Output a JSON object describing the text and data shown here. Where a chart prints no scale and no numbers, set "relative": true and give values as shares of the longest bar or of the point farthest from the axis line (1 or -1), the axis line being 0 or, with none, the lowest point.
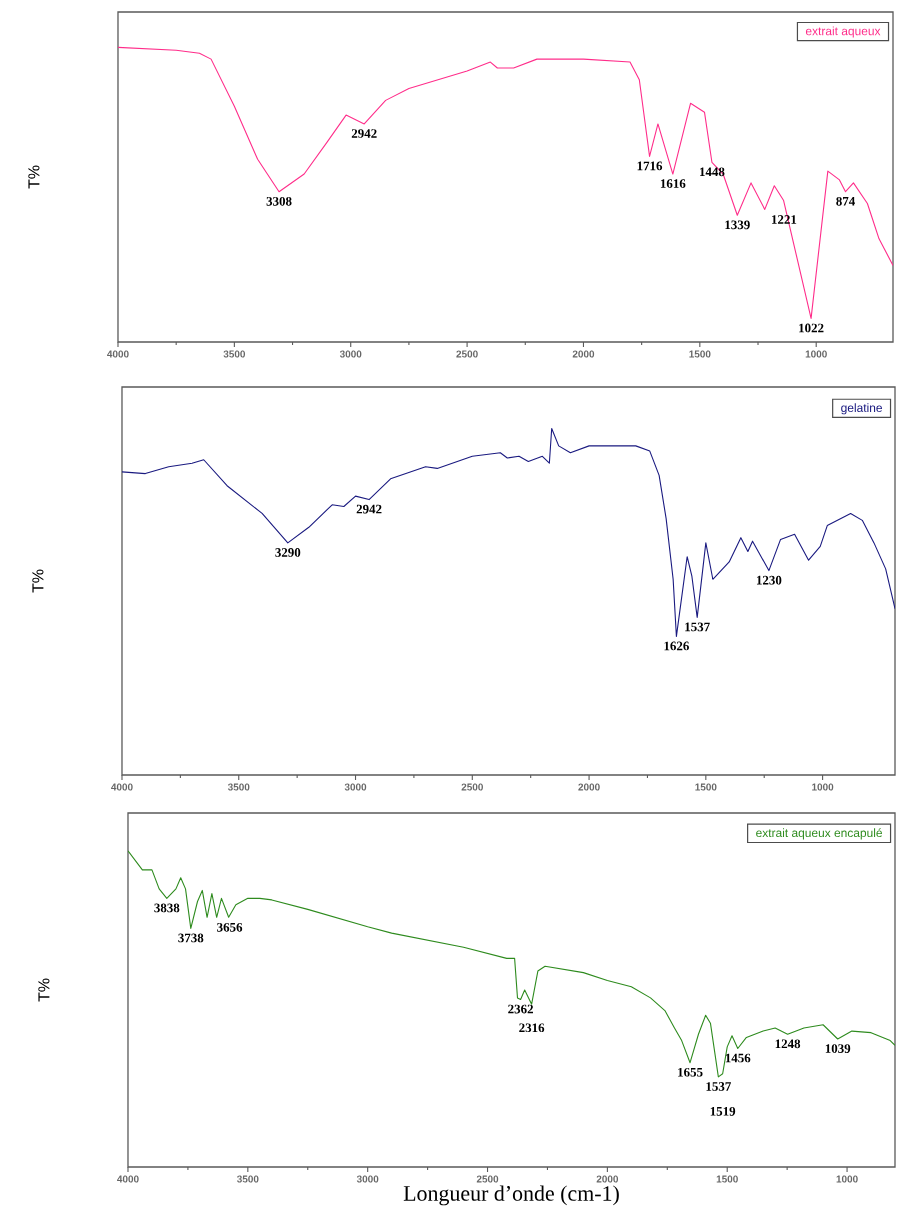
{
  "chart_data": [
    {
      "type": "line",
      "relative": true,
      "ylabel": "T%",
      "xlim": [
        4000,
        670
      ],
      "xticks": [
        4000,
        3500,
        3000,
        2500,
        2000,
        1500,
        1000
      ],
      "legend": "top right",
      "series": [
        {
          "name": "extrait aqueux",
          "color": "#ff2d8a",
          "x": [
            4000,
            3750,
            3650,
            3600,
            3500,
            3400,
            3308,
            3200,
            3100,
            3020,
            2942,
            2850,
            2750,
            2500,
            2400,
            2370,
            2300,
            2200,
            2000,
            1800,
            1760,
            1716,
            1680,
            1616,
            1540,
            1480,
            1448,
            1400,
            1339,
            1280,
            1221,
            1180,
            1140,
            1022,
            950,
            900,
            874,
            840,
            780,
            730,
            670
          ],
          "values": [
            1.0,
            0.99,
            0.98,
            0.96,
            0.8,
            0.62,
            0.51,
            0.57,
            0.68,
            0.77,
            0.74,
            0.82,
            0.86,
            0.92,
            0.95,
            0.93,
            0.93,
            0.96,
            0.96,
            0.95,
            0.89,
            0.63,
            0.74,
            0.57,
            0.81,
            0.78,
            0.61,
            0.57,
            0.43,
            0.54,
            0.45,
            0.53,
            0.48,
            0.08,
            0.58,
            0.55,
            0.51,
            0.54,
            0.47,
            0.35,
            0.26
          ]
        }
      ],
      "annotations": [
        {
          "text": "3308",
          "x": 3308,
          "y": 0.51
        },
        {
          "text": "2942",
          "x": 2942,
          "y": 0.74
        },
        {
          "text": "1716",
          "x": 1716,
          "y": 0.63
        },
        {
          "text": "1616",
          "x": 1616,
          "y": 0.57
        },
        {
          "text": "1448",
          "x": 1448,
          "y": 0.61
        },
        {
          "text": "1339",
          "x": 1339,
          "y": 0.43
        },
        {
          "text": "1221",
          "x": 1221,
          "y": 0.45
        },
        {
          "text": "1022",
          "x": 1022,
          "y": 0.08
        },
        {
          "text": "874",
          "x": 874,
          "y": 0.51
        }
      ]
    },
    {
      "type": "line",
      "relative": true,
      "ylabel": "T%",
      "xlim": [
        4000,
        690
      ],
      "xticks": [
        4000,
        3500,
        3000,
        2500,
        2000,
        1500,
        1000
      ],
      "legend": "top right",
      "series": [
        {
          "name": "gelatine",
          "color": "#1a1a80",
          "x": [
            4000,
            3900,
            3800,
            3700,
            3650,
            3550,
            3400,
            3290,
            3200,
            3100,
            3050,
            3000,
            2942,
            2850,
            2700,
            2650,
            2500,
            2380,
            2350,
            2300,
            2260,
            2200,
            2170,
            2160,
            2130,
            2080,
            2000,
            1900,
            1800,
            1740,
            1700,
            1670,
            1640,
            1626,
            1580,
            1560,
            1537,
            1500,
            1470,
            1400,
            1350,
            1320,
            1300,
            1230,
            1180,
            1120,
            1060,
            1010,
            980,
            880,
            830,
            780,
            730,
            690
          ],
          "values": [
            0.875,
            0.87,
            0.89,
            0.9,
            0.91,
            0.835,
            0.755,
            0.67,
            0.715,
            0.78,
            0.775,
            0.805,
            0.795,
            0.855,
            0.89,
            0.885,
            0.92,
            0.93,
            0.915,
            0.92,
            0.905,
            0.92,
            0.9,
            1.0,
            0.95,
            0.93,
            0.95,
            0.95,
            0.95,
            0.935,
            0.865,
            0.74,
            0.565,
            0.4,
            0.63,
            0.575,
            0.455,
            0.67,
            0.565,
            0.615,
            0.685,
            0.645,
            0.675,
            0.59,
            0.68,
            0.695,
            0.62,
            0.66,
            0.72,
            0.755,
            0.735,
            0.67,
            0.595,
            0.48
          ]
        }
      ],
      "annotations": [
        {
          "text": "3290",
          "x": 3290,
          "y": 0.67
        },
        {
          "text": "2942",
          "x": 2942,
          "y": 0.795
        },
        {
          "text": "1626",
          "x": 1626,
          "y": 0.4
        },
        {
          "text": "1537",
          "x": 1537,
          "y": 0.455
        },
        {
          "text": "1230",
          "x": 1230,
          "y": 0.59
        }
      ]
    },
    {
      "type": "line",
      "relative": true,
      "ylabel": "T%",
      "xlabel": "Longueur d’onde (cm-1)",
      "xlim": [
        4000,
        800
      ],
      "xticks": [
        4000,
        3500,
        3000,
        2500,
        2000,
        1500,
        1000
      ],
      "legend": "top right",
      "series": [
        {
          "name": "extrait aqueux encapulé",
          "color": "#2e8b1e",
          "x": [
            4000,
            3940,
            3900,
            3870,
            3838,
            3800,
            3780,
            3760,
            3738,
            3710,
            3690,
            3670,
            3650,
            3630,
            3610,
            3580,
            3550,
            3500,
            3450,
            3400,
            3250,
            3000,
            2900,
            2600,
            2420,
            2387,
            2375,
            2362,
            2345,
            2316,
            2290,
            2260,
            2100,
            2000,
            1900,
            1820,
            1760,
            1720,
            1690,
            1655,
            1620,
            1590,
            1570,
            1537,
            1519,
            1500,
            1480,
            1456,
            1420,
            1350,
            1300,
            1248,
            1180,
            1100,
            1039,
            980,
            900,
            820,
            800
          ],
          "values": [
            1.0,
            0.94,
            0.94,
            0.88,
            0.85,
            0.88,
            0.915,
            0.88,
            0.755,
            0.84,
            0.875,
            0.79,
            0.865,
            0.79,
            0.85,
            0.79,
            0.83,
            0.85,
            0.85,
            0.845,
            0.815,
            0.76,
            0.74,
            0.695,
            0.66,
            0.66,
            0.535,
            0.53,
            0.56,
            0.515,
            0.62,
            0.635,
            0.615,
            0.59,
            0.57,
            0.535,
            0.495,
            0.44,
            0.4,
            0.33,
            0.42,
            0.48,
            0.455,
            0.285,
            0.295,
            0.38,
            0.415,
            0.375,
            0.41,
            0.43,
            0.44,
            0.42,
            0.44,
            0.45,
            0.405,
            0.43,
            0.425,
            0.4,
            0.385
          ]
        }
      ],
      "annotations": [
        {
          "text": "3838",
          "x": 3838,
          "y": 0.85
        },
        {
          "text": "3738",
          "x": 3738,
          "y": 0.755
        },
        {
          "text": "3656",
          "x": 3656,
          "y": 0.79
        },
        {
          "text": "2362",
          "x": 2362,
          "y": 0.53
        },
        {
          "text": "2316",
          "x": 2316,
          "y": 0.515
        },
        {
          "text": "1655",
          "x": 1655,
          "y": 0.33
        },
        {
          "text": "1537",
          "x": 1537,
          "y": 0.285
        },
        {
          "text": "1519",
          "x": 1519,
          "y": 0.295
        },
        {
          "text": "1456",
          "x": 1456,
          "y": 0.375
        },
        {
          "text": "1248",
          "x": 1248,
          "y": 0.42
        },
        {
          "text": "1039",
          "x": 1039,
          "y": 0.405
        }
      ]
    }
  ]
}
